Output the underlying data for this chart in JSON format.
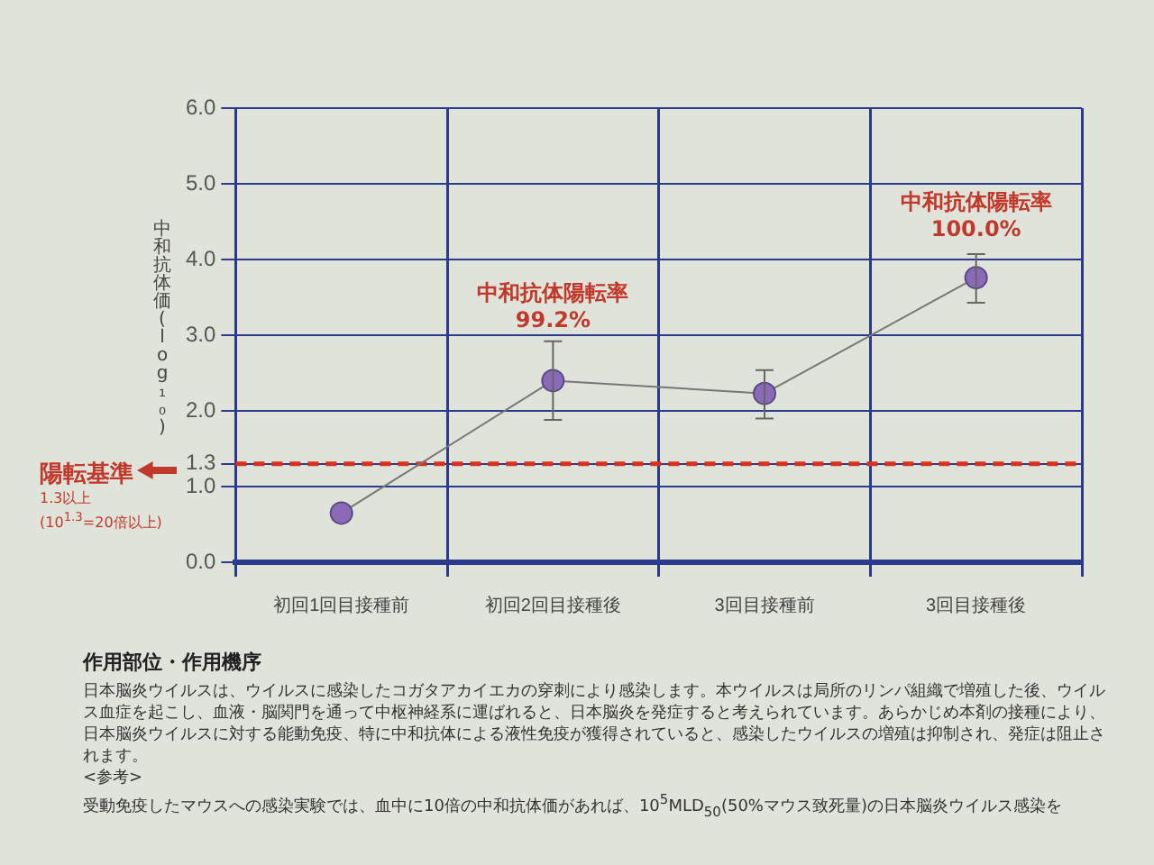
{
  "chart_data": {
    "type": "line",
    "categories": [
      "初回1回目接種前",
      "初回2回目接種後",
      "3回目接種前",
      "3回目接種後"
    ],
    "series": [
      {
        "color": "#8a6ab8",
        "values": [
          0.65,
          2.4,
          2.23,
          3.76
        ],
        "errors": [
          null,
          [
            1.88,
            2.92
          ],
          [
            1.9,
            2.54
          ],
          [
            3.43,
            4.07
          ]
        ]
      }
    ],
    "ylabel": "中和抗体価(log₁₀)",
    "ylim": [
      0,
      6
    ],
    "yticks": [
      {
        "value": 0,
        "label": "0.0"
      },
      {
        "value": 1,
        "label": "1.0"
      },
      {
        "value": 1.3,
        "label": "1.3"
      },
      {
        "value": 2,
        "label": "2.0"
      },
      {
        "value": 3,
        "label": "3.0"
      },
      {
        "value": 4,
        "label": "4.0"
      },
      {
        "value": 5,
        "label": "5.0"
      },
      {
        "value": 6,
        "label": "6.0"
      }
    ],
    "grid": true,
    "legend": false,
    "marker": "circle",
    "line_style": "solid",
    "ref_lines": [
      {
        "axis": "y",
        "value": 1.3,
        "label": "陽転基準",
        "color": "#d9301f",
        "line_style": "dashed"
      }
    ],
    "annotations": [
      "1.3以上",
      "(10$^{1.3}$=20倍以上)",
      "中和抗体陽転率\n99.2%",
      "中和抗体陽転率\n100.0%",
      "作用部位・作用機序",
      "日本脳炎ウイルスは、ウイルスに感染したコガタアカイエカの穿刺により感染します。本ウイルスは局所のリンパ組織で増殖した後、ウイルス血症を起こし、血液・脳関門を通って中枢神経系に運ばれると、日本脳炎を発症すると考えられています。あらかじめ本剤の接種により、日本脳炎ウイルスに対する能動免疫、特に中和抗体による液性免疫が獲得されていると、感染したウイルスの増殖は抑制され、発症は阻止されます。",
      "<参考>",
      "受動免疫したマウスへの感染実験では、血中に10倍の中和抗体価があれば、10$^{5}$MLD$_{50}$(50%マウス致死量)の日本脳炎ウイルス感染を"
    ]
  }
}
